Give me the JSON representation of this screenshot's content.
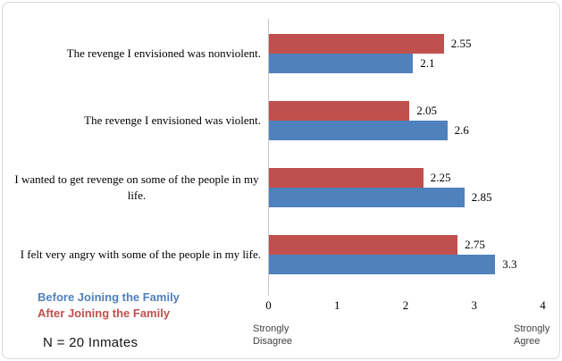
{
  "chart_data": {
    "type": "bar",
    "orientation": "horizontal",
    "title": "",
    "categories": [
      "The revenge I envisioned was nonviolent.",
      "The revenge I envisioned was violent.",
      "I wanted to get revenge on some of the people in my life.",
      "I felt very angry with some of the people in my life."
    ],
    "series": [
      {
        "name": "Before Joining the Family",
        "color": "#4F81BD",
        "values": [
          2.1,
          2.6,
          2.85,
          3.3
        ]
      },
      {
        "name": "After Joining the Family",
        "color": "#C0504D",
        "values": [
          2.55,
          2.05,
          2.25,
          2.75
        ]
      }
    ],
    "bar_order_top_to_bottom": [
      "After Joining the Family",
      "Before Joining the Family"
    ],
    "xlim": [
      0,
      4
    ],
    "xticks": [
      "0",
      "1",
      "2",
      "3",
      "4"
    ],
    "axis_notes": {
      "min": [
        "Strongly",
        "Disagree"
      ],
      "max": [
        "Strongly",
        "Agree"
      ]
    },
    "value_labels": true,
    "grid": false,
    "legend_position": "bottom-left"
  },
  "annotations": {
    "sample_size": "N = 20 Inmates"
  },
  "colors": {
    "axis_line": "#C8C8C8",
    "frame_border": "#D9D9D9",
    "text": "#000000",
    "secondary_text": "#404040"
  }
}
